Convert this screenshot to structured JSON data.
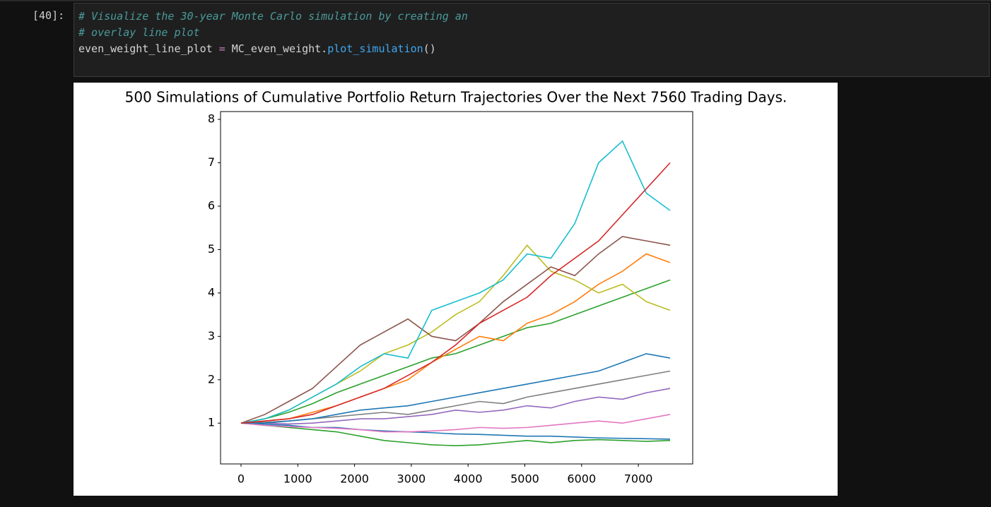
{
  "cell": {
    "prompt": "[40]:",
    "code": [
      "# Visualize the 30-year Monte Carlo simulation by creating an",
      "# overlay line plot",
      [
        "even_weight_line_plot ",
        "=",
        " MC_even_weight.",
        "plot_simulation",
        "()"
      ]
    ]
  },
  "chart_data": {
    "type": "line",
    "title": "500 Simulations of Cumulative Portfolio Return Trajectories Over the Next 7560 Trading Days.",
    "x": [
      0,
      420,
      840,
      1260,
      1680,
      2100,
      2520,
      2940,
      3360,
      3780,
      4200,
      4620,
      5040,
      5460,
      5880,
      6300,
      6720,
      7140,
      7560
    ],
    "series": [
      {
        "color": "#2ca02c",
        "values": [
          1,
          0.95,
          0.9,
          0.85,
          0.8,
          0.7,
          0.6,
          0.55,
          0.5,
          0.48,
          0.5,
          0.55,
          0.6,
          0.55,
          0.6,
          0.62,
          0.6,
          0.58,
          0.6
        ]
      },
      {
        "color": "#1f77b4",
        "values": [
          1,
          0.97,
          0.95,
          0.9,
          0.9,
          0.85,
          0.82,
          0.8,
          0.78,
          0.75,
          0.74,
          0.72,
          0.7,
          0.7,
          0.68,
          0.66,
          0.65,
          0.64,
          0.63
        ]
      },
      {
        "color": "#e377c2",
        "values": [
          1,
          0.95,
          0.92,
          0.9,
          0.88,
          0.85,
          0.8,
          0.8,
          0.82,
          0.85,
          0.9,
          0.88,
          0.9,
          0.95,
          1.0,
          1.05,
          1.0,
          1.1,
          1.2
        ]
      },
      {
        "color": "#9467bd",
        "values": [
          1,
          1,
          0.98,
          1,
          1.05,
          1.1,
          1.1,
          1.15,
          1.2,
          1.3,
          1.25,
          1.3,
          1.4,
          1.35,
          1.5,
          1.6,
          1.55,
          1.7,
          1.8
        ]
      },
      {
        "color": "#7f7f7f",
        "values": [
          1,
          1.02,
          1.05,
          1.1,
          1.15,
          1.2,
          1.25,
          1.2,
          1.3,
          1.4,
          1.5,
          1.45,
          1.6,
          1.7,
          1.8,
          1.9,
          2.0,
          2.1,
          2.2
        ]
      },
      {
        "color": "#1f77b4",
        "values": [
          1,
          1.0,
          1.05,
          1.1,
          1.2,
          1.3,
          1.35,
          1.4,
          1.5,
          1.6,
          1.7,
          1.8,
          1.9,
          2.0,
          2.1,
          2.2,
          2.4,
          2.6,
          2.5
        ]
      },
      {
        "color": "#2ca02c",
        "values": [
          1,
          1.1,
          1.25,
          1.45,
          1.7,
          1.9,
          2.1,
          2.3,
          2.5,
          2.6,
          2.8,
          3.0,
          3.2,
          3.3,
          3.5,
          3.7,
          3.9,
          4.1,
          4.3
        ]
      },
      {
        "color": "#ff7f0e",
        "values": [
          1,
          1.05,
          1.1,
          1.25,
          1.4,
          1.6,
          1.8,
          2.0,
          2.4,
          2.7,
          3.0,
          2.9,
          3.3,
          3.5,
          3.8,
          4.2,
          4.5,
          4.9,
          4.7
        ]
      },
      {
        "color": "#bcbd22",
        "values": [
          1,
          1.1,
          1.3,
          1.6,
          1.9,
          2.2,
          2.6,
          2.8,
          3.1,
          3.5,
          3.8,
          4.4,
          5.1,
          4.5,
          4.3,
          4.0,
          4.2,
          3.8,
          3.6
        ]
      },
      {
        "color": "#8c564b",
        "values": [
          1,
          1.2,
          1.5,
          1.8,
          2.3,
          2.8,
          3.1,
          3.4,
          3.0,
          2.9,
          3.3,
          3.8,
          4.2,
          4.6,
          4.4,
          4.9,
          5.3,
          5.2,
          5.1
        ]
      },
      {
        "color": "#17becf",
        "values": [
          1,
          1.1,
          1.3,
          1.6,
          1.9,
          2.3,
          2.6,
          2.5,
          3.6,
          3.8,
          4.0,
          4.3,
          4.9,
          4.8,
          5.6,
          7.0,
          7.5,
          6.3,
          5.9
        ]
      },
      {
        "color": "#d62728",
        "values": [
          1,
          1.05,
          1.1,
          1.2,
          1.4,
          1.6,
          1.8,
          2.1,
          2.4,
          2.8,
          3.3,
          3.6,
          3.9,
          4.4,
          4.8,
          5.2,
          5.8,
          6.4,
          7.0
        ]
      }
    ],
    "xlim": [
      -361,
      7958
    ],
    "xticks": [
      0,
      1000,
      2000,
      3000,
      4000,
      5000,
      6000,
      7000
    ],
    "ylim": [
      0.06,
      8.18
    ],
    "yticks": [
      1,
      2,
      3,
      4,
      5,
      6,
      7,
      8
    ],
    "grid": false
  }
}
